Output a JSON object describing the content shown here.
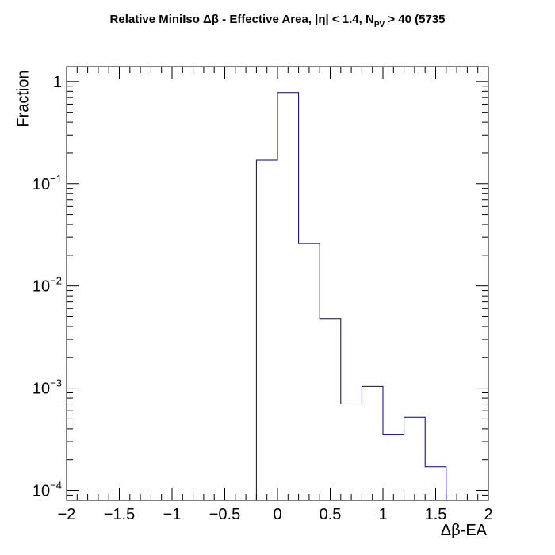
{
  "chart_data": {
    "type": "histogram",
    "title": {
      "pre": "Relative MiniIso Δβ - Effective Area, |η| < 1.4, N",
      "sub": "PV",
      "post": " > 40 (5735"
    },
    "xlabel": "Δβ-EA",
    "ylabel": "Fraction",
    "xlim": [
      -2,
      2
    ],
    "ylim": [
      8e-05,
      1.4
    ],
    "yscale": "log",
    "x_ticks": [
      "−2",
      "−1.5",
      "−1",
      "−0.5",
      "0",
      "0.5",
      "1",
      "1.5",
      "2"
    ],
    "x_tick_values": [
      -2,
      -1.5,
      -1,
      -0.5,
      0,
      0.5,
      1,
      1.5,
      2
    ],
    "y_ticks": [
      {
        "base": "10",
        "exp": "−4",
        "value": 0.0001
      },
      {
        "base": "10",
        "exp": "−3",
        "value": 0.001
      },
      {
        "base": "10",
        "exp": "−2",
        "value": 0.01
      },
      {
        "base": "10",
        "exp": "−1",
        "value": 0.1
      },
      {
        "base": "1",
        "exp": "",
        "value": 1
      }
    ],
    "bin_width": 0.2,
    "bins": [
      {
        "x0": -0.2,
        "x1": 0.0,
        "value": 0.17
      },
      {
        "x0": 0.0,
        "x1": 0.2,
        "value": 0.78
      },
      {
        "x0": 0.2,
        "x1": 0.4,
        "value": 0.026
      },
      {
        "x0": 0.4,
        "x1": 0.6,
        "value": 0.0048
      },
      {
        "x0": 0.6,
        "x1": 0.8,
        "value": 0.0007
      },
      {
        "x0": 0.8,
        "x1": 1.0,
        "value": 0.00104
      },
      {
        "x0": 1.0,
        "x1": 1.2,
        "value": 0.00035
      },
      {
        "x0": 1.2,
        "x1": 1.4,
        "value": 0.00052
      },
      {
        "x0": 1.4,
        "x1": 1.6,
        "value": 0.00017
      }
    ],
    "line_color": "#00007f",
    "grid": false,
    "legend": "none"
  }
}
